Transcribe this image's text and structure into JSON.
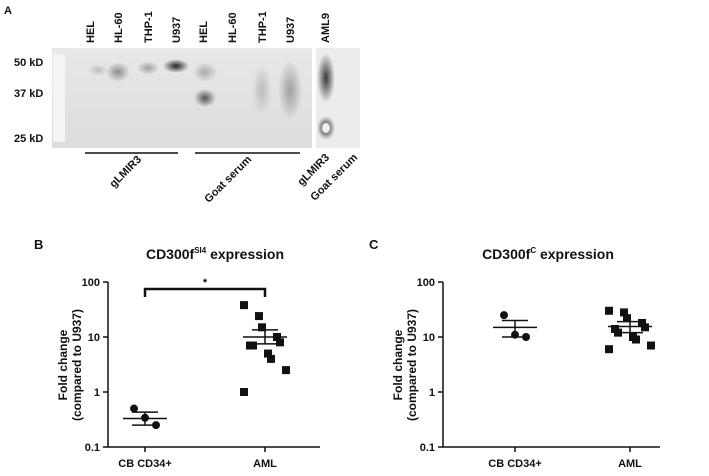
{
  "blot": {
    "panel_label": "A",
    "lanes": [
      "HEL",
      "HL-60",
      "THP-1",
      "U937",
      "HEL",
      "HL-60",
      "THP-1",
      "U937",
      "AML9"
    ],
    "mw_labels": [
      "50 kD",
      "37 kD",
      "25 kD"
    ],
    "groups": [
      "gLMIR3",
      "Goat serum",
      "gLMIR3",
      "Goat serum"
    ]
  },
  "chart_data": [
    {
      "type": "strip",
      "panel_label": "B",
      "title": {
        "main": "CD300f",
        "sup": "SI4",
        "rest": " expression"
      },
      "y_label": [
        "Fold change",
        "(compared to U937)"
      ],
      "log_scale": true,
      "ylim": [
        0.1,
        100
      ],
      "yticks": [
        0.1,
        1,
        10,
        100
      ],
      "groups": [
        {
          "category": "CB CD34+",
          "marker": "circle",
          "values": [
            0.5,
            0.34,
            0.25
          ],
          "mean": 0.33,
          "error_high": 0.43,
          "error_low": 0.25
        },
        {
          "category": "AML",
          "marker": "square",
          "values": [
            38,
            24,
            15,
            10,
            8,
            7,
            7,
            5,
            4,
            2.5,
            1
          ],
          "mean": 10,
          "error_high": 13.5,
          "error_low": 7.5
        }
      ],
      "significance": "*"
    },
    {
      "type": "strip",
      "panel_label": "C",
      "title": {
        "main": "CD300f",
        "sup": "C",
        "rest": " expression"
      },
      "y_label": [
        "Fold change",
        "(compared to U937)"
      ],
      "log_scale": true,
      "ylim": [
        0.1,
        100
      ],
      "yticks": [
        0.1,
        1,
        10,
        100
      ],
      "groups": [
        {
          "category": "CB CD34+",
          "marker": "circle",
          "values": [
            25,
            11,
            10
          ],
          "mean": 15,
          "error_high": 20,
          "error_low": 10
        },
        {
          "category": "AML",
          "marker": "square",
          "values": [
            30,
            28,
            22,
            18,
            15,
            14,
            12,
            10,
            9,
            7,
            6
          ],
          "mean": 15.5,
          "error_high": 19,
          "error_low": 12
        }
      ]
    }
  ]
}
